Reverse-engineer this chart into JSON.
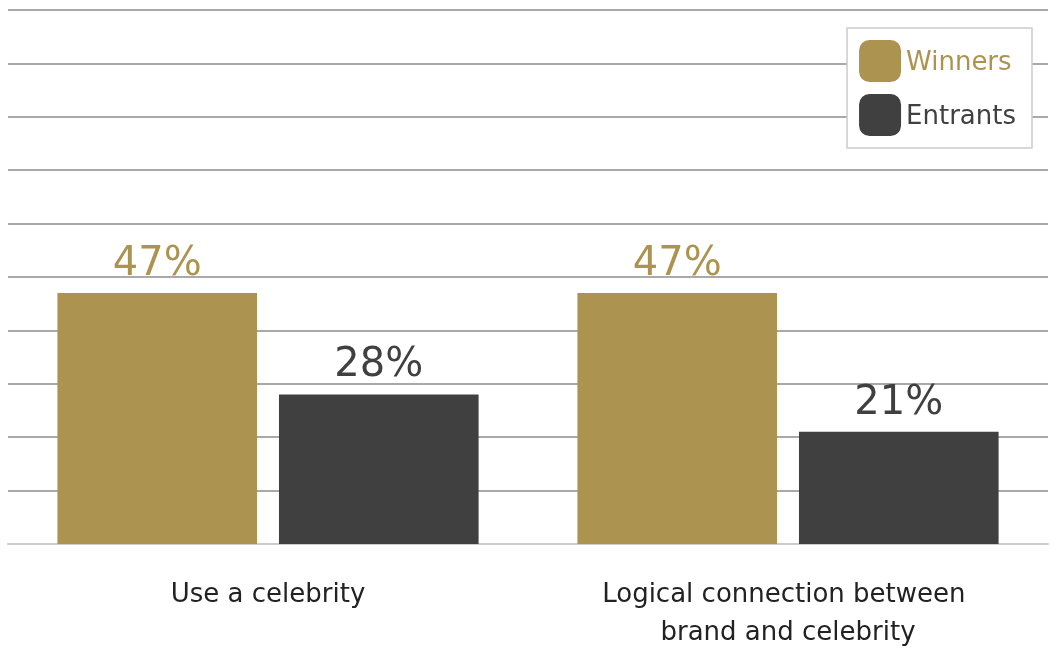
{
  "chart_data": {
    "type": "bar",
    "categories": [
      "Use a celebrity",
      "Logical connection between brand and celebrity"
    ],
    "series": [
      {
        "name": "Winners",
        "color": "#ad9350",
        "values": [
          47,
          47
        ],
        "value_labels": [
          "47%",
          "47%"
        ]
      },
      {
        "name": "Entrants",
        "color": "#404040",
        "values": [
          28,
          21
        ],
        "value_labels": [
          "28%",
          "21%"
        ]
      }
    ],
    "ylim": [
      0,
      100
    ],
    "yticks": [
      {
        "value": 0,
        "label": null
      },
      {
        "value": 10,
        "label": null
      },
      {
        "value": 20,
        "label": null
      },
      {
        "value": 30,
        "label": null
      },
      {
        "value": 40,
        "label": null
      },
      {
        "value": 50,
        "label": null
      },
      {
        "value": 60,
        "label": null
      },
      {
        "value": 70,
        "label": null
      },
      {
        "value": 80,
        "label": null
      },
      {
        "value": 90,
        "label": null
      },
      {
        "value": 100,
        "label": null
      }
    ],
    "tick_labels": "x",
    "grid": "y",
    "legend": "top right"
  }
}
